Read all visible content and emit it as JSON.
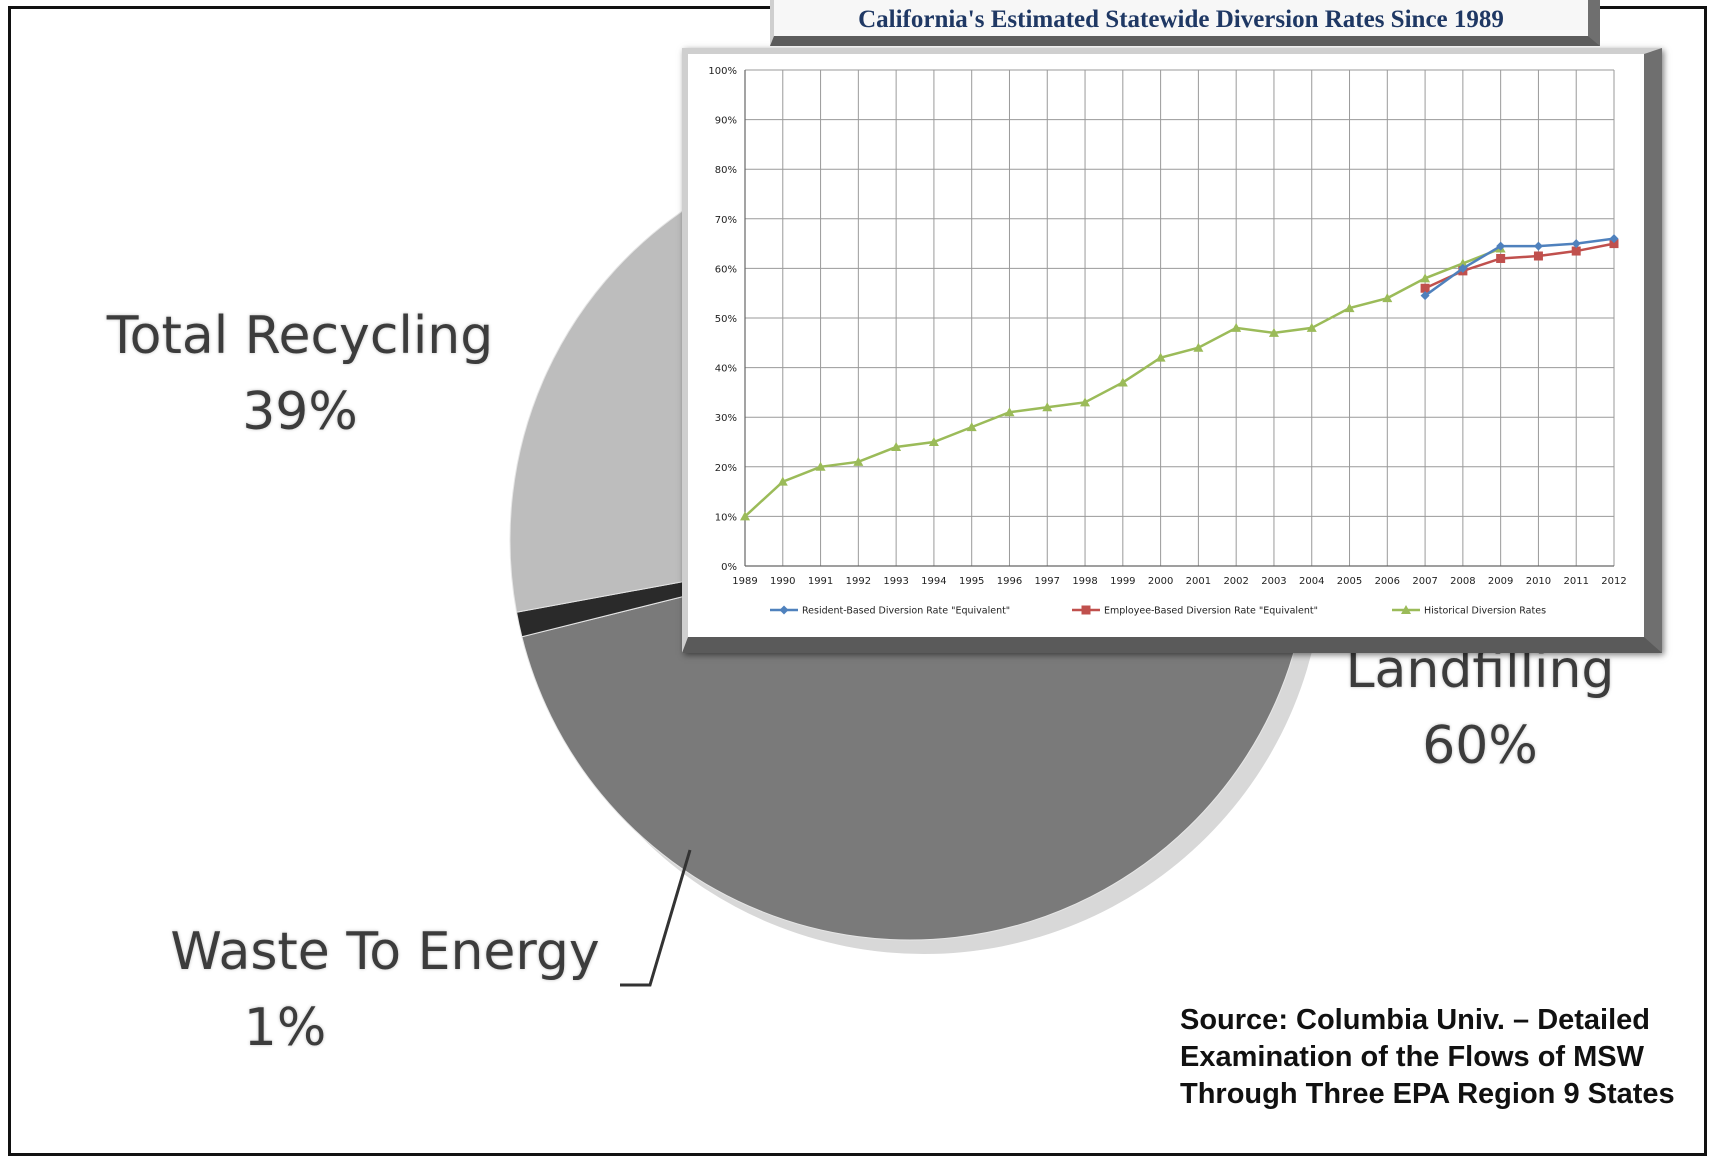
{
  "colors": {
    "recycling_slice": "#bdbdbd",
    "landfilling_slice": "#7a7a7a",
    "energy_slice": "#2a2a2a",
    "resident_series": "#4f81bd",
    "employee_series": "#c0504d",
    "historical_series": "#9bbb59",
    "title_text": "#1f3864"
  },
  "chart_data": [
    {
      "type": "pie",
      "title": "",
      "slices": [
        {
          "label": "Total Recycling",
          "value": 39,
          "value_label": "39%"
        },
        {
          "label": "Landfilling",
          "value": 60,
          "value_label": "60%"
        },
        {
          "label": "Waste To Energy",
          "value": 1,
          "value_label": "1%"
        }
      ]
    },
    {
      "type": "line",
      "title": "California's Estimated Statewide Diversion Rates Since 1989",
      "xlabel": "",
      "ylabel": "",
      "ylim": [
        0,
        100
      ],
      "y_ticks": [
        "0%",
        "10%",
        "20%",
        "30%",
        "40%",
        "50%",
        "60%",
        "70%",
        "80%",
        "90%",
        "100%"
      ],
      "x": [
        "1989",
        "1990",
        "1991",
        "1992",
        "1993",
        "1994",
        "1995",
        "1996",
        "1997",
        "1998",
        "1999",
        "2000",
        "2001",
        "2002",
        "2003",
        "2004",
        "2005",
        "2006",
        "2007",
        "2008",
        "2009",
        "2010",
        "2011",
        "2012"
      ],
      "grid": true,
      "legend_position": "bottom",
      "series": [
        {
          "name": "Resident-Based Diversion Rate \"Equivalent\"",
          "marker": "diamond",
          "values": [
            null,
            null,
            null,
            null,
            null,
            null,
            null,
            null,
            null,
            null,
            null,
            null,
            null,
            null,
            null,
            null,
            null,
            null,
            54.5,
            60,
            64.5,
            64.5,
            65,
            66
          ]
        },
        {
          "name": "Employee-Based Diversion Rate \"Equivalent\"",
          "marker": "square",
          "values": [
            null,
            null,
            null,
            null,
            null,
            null,
            null,
            null,
            null,
            null,
            null,
            null,
            null,
            null,
            null,
            null,
            null,
            null,
            56,
            59.5,
            62,
            62.5,
            63.5,
            65
          ]
        },
        {
          "name": "Historical Diversion Rates",
          "marker": "triangle",
          "values": [
            10,
            17,
            20,
            21,
            24,
            25,
            28,
            31,
            32,
            33,
            37,
            42,
            44,
            48,
            47,
            48,
            52,
            54,
            58,
            61,
            64,
            null,
            null,
            null
          ]
        }
      ]
    }
  ],
  "source_note": "Source: Columbia Univ. – Detailed Examination of the Flows of MSW Through Three EPA Region 9 States"
}
